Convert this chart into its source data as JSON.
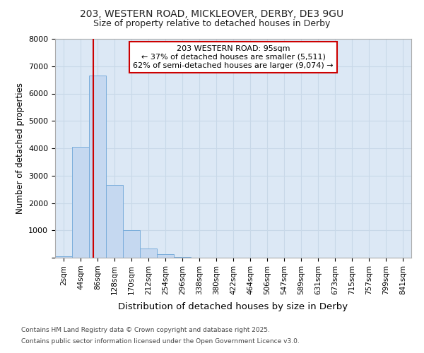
{
  "title1": "203, WESTERN ROAD, MICKLEOVER, DERBY, DE3 9GU",
  "title2": "Size of property relative to detached houses in Derby",
  "xlabel": "Distribution of detached houses by size in Derby",
  "ylabel": "Number of detached properties",
  "footer1": "Contains HM Land Registry data © Crown copyright and database right 2025.",
  "footer2": "Contains public sector information licensed under the Open Government Licence v3.0.",
  "bin_labels": [
    "2sqm",
    "44sqm",
    "86sqm",
    "128sqm",
    "170sqm",
    "212sqm",
    "254sqm",
    "296sqm",
    "338sqm",
    "380sqm",
    "422sqm",
    "464sqm",
    "506sqm",
    "547sqm",
    "589sqm",
    "631sqm",
    "673sqm",
    "715sqm",
    "757sqm",
    "799sqm",
    "841sqm"
  ],
  "bar_heights": [
    50,
    4050,
    6650,
    2650,
    1000,
    330,
    120,
    20,
    10,
    0,
    0,
    0,
    0,
    0,
    0,
    0,
    0,
    0,
    0,
    0,
    0
  ],
  "bar_color": "#c5d8f0",
  "bar_edgecolor": "#7aaddb",
  "property_label": "203 WESTERN ROAD: 95sqm",
  "annotation_line1": "← 37% of detached houses are smaller (5,511)",
  "annotation_line2": "62% of semi-detached houses are larger (9,074) →",
  "vline_color": "#cc0000",
  "vline_x": 1.75,
  "ylim": [
    0,
    8000
  ],
  "yticks": [
    0,
    1000,
    2000,
    3000,
    4000,
    5000,
    6000,
    7000,
    8000
  ],
  "grid_color": "#c8d8e8",
  "plot_bg_color": "#dce8f5",
  "fig_bg_color": "#ffffff",
  "annotation_box_color": "#cc0000"
}
